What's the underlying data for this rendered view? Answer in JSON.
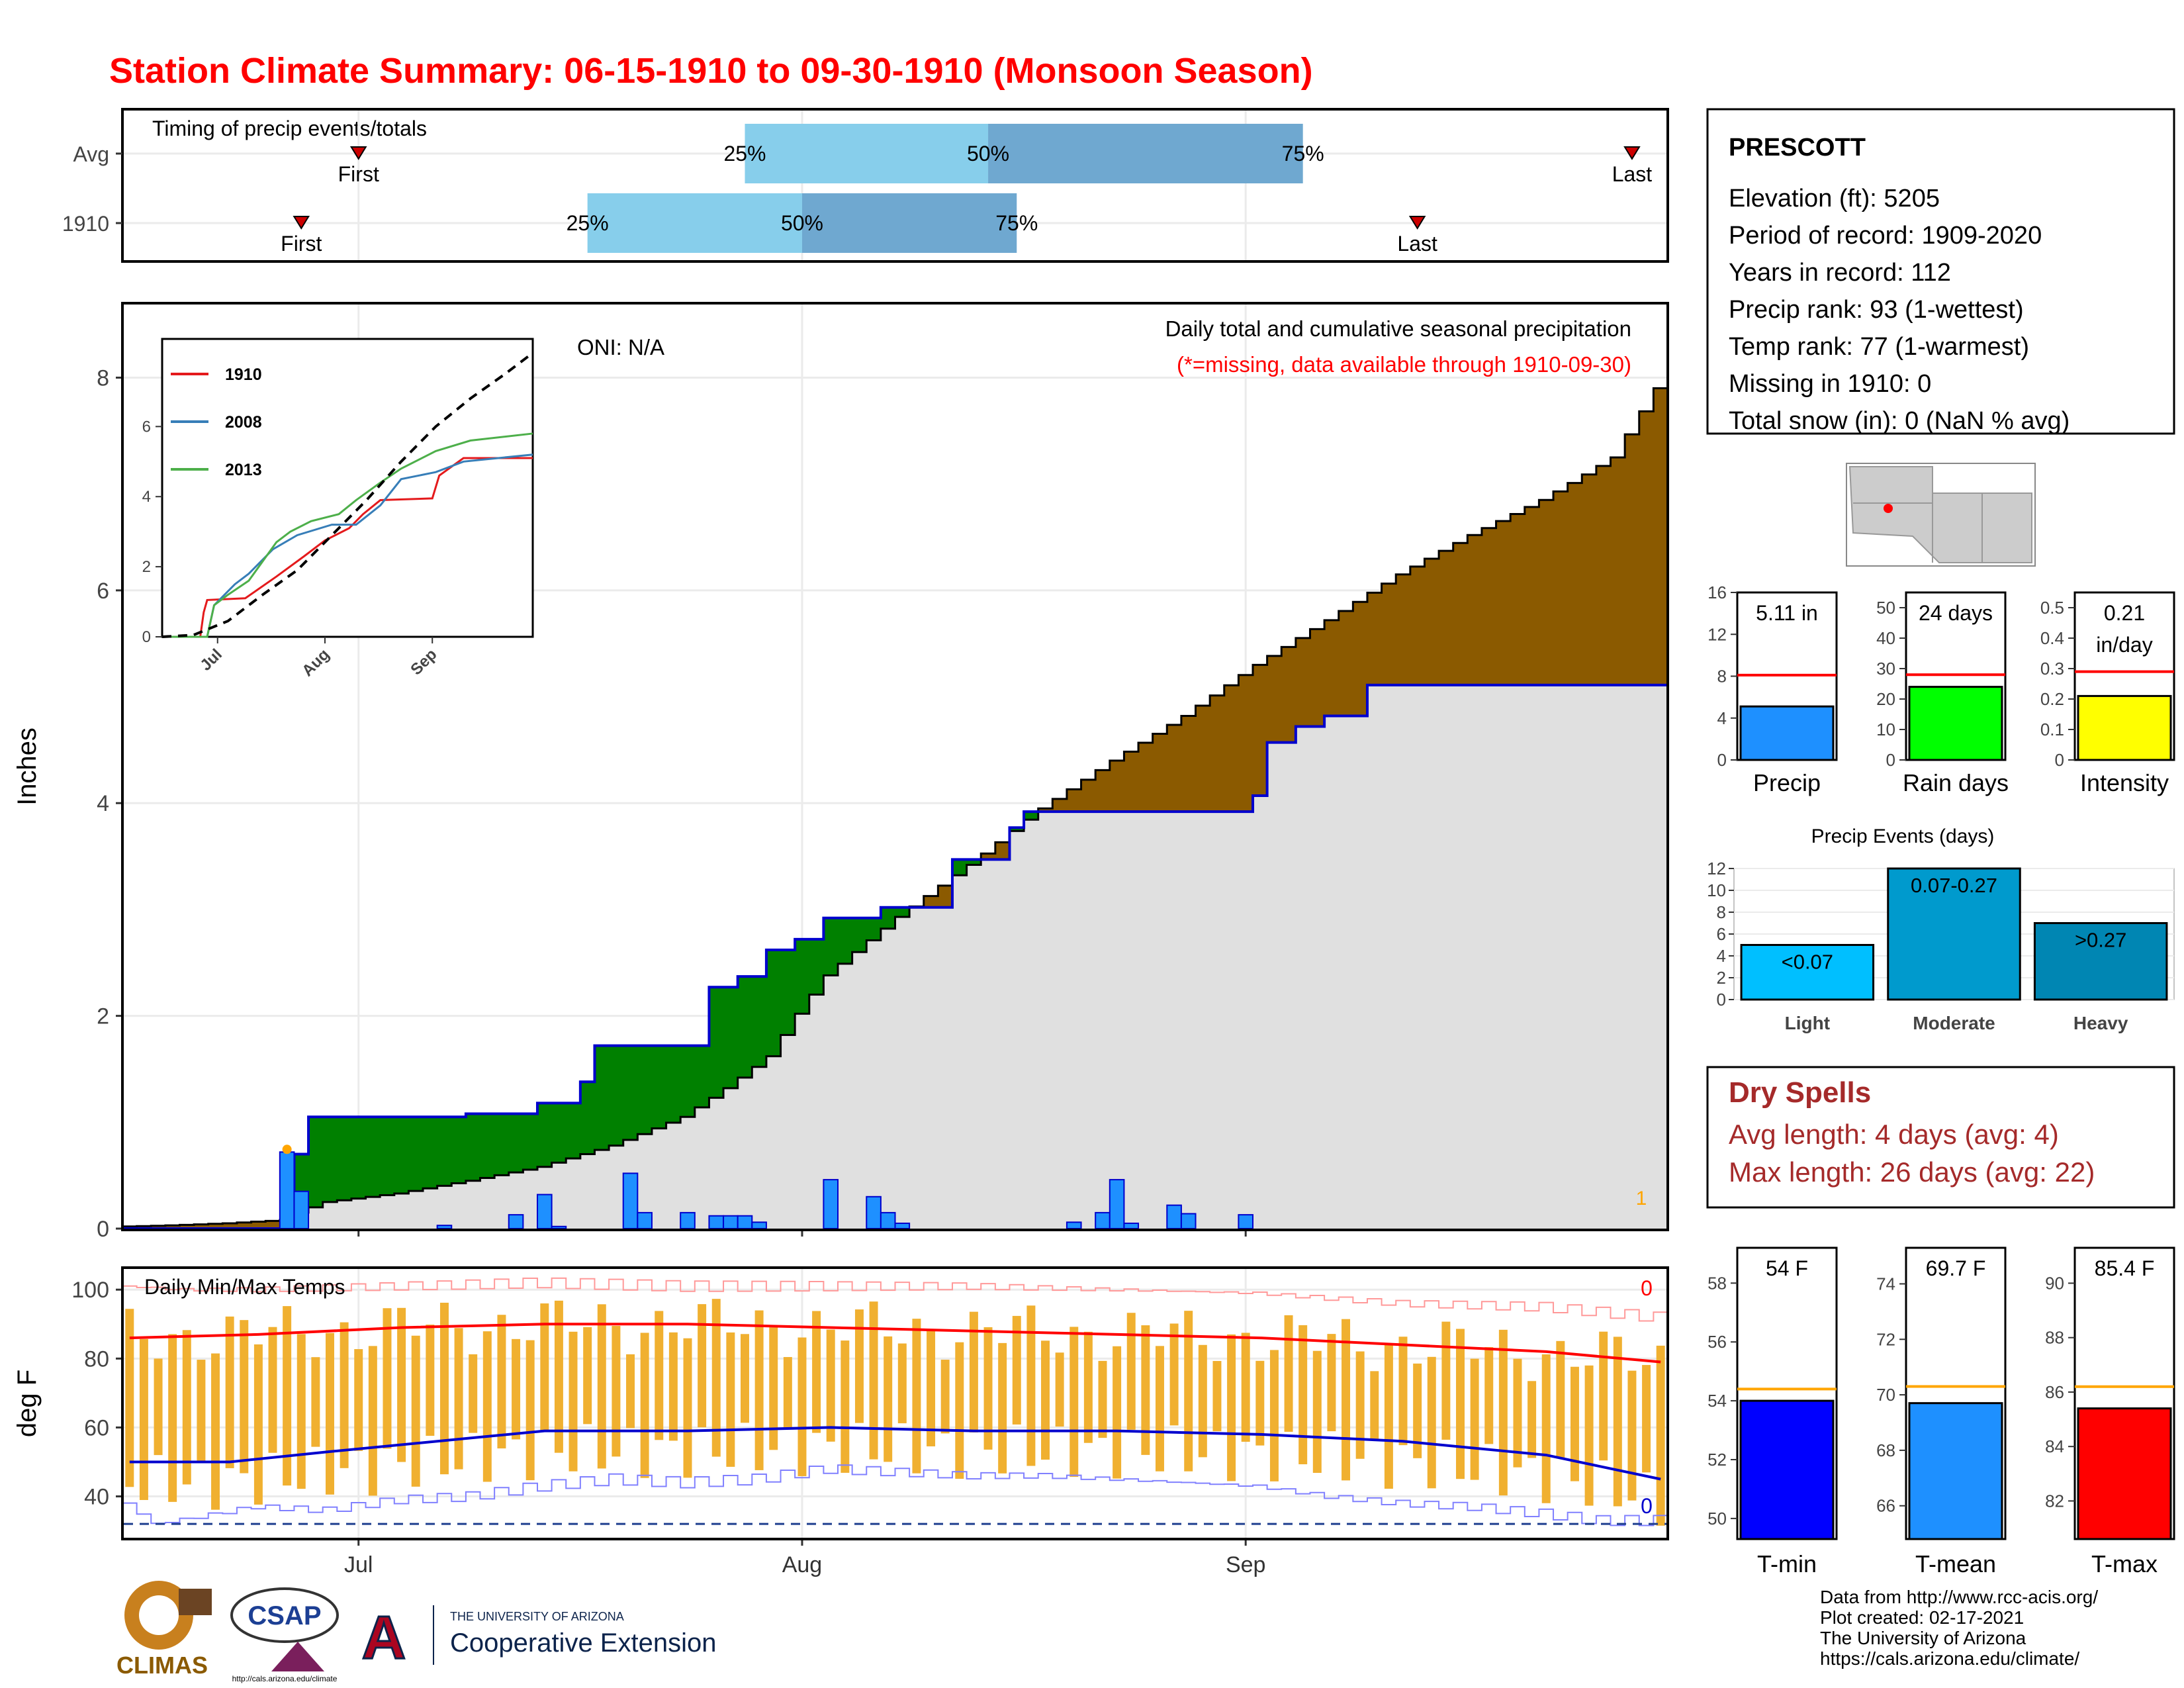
{
  "title": "Station Climate Summary: 06-15-1910 to 09-30-1910 (Monsoon Season)",
  "colors": {
    "title": "#ff0000",
    "dry_spells": "#a52a2a",
    "cumulative_avg": "#8b5a00",
    "surplus": "#008000",
    "observed_fill": "#e0e0e0",
    "daily_bar": "#1e90ff"
  },
  "month_labels": [
    "Jul",
    "Aug",
    "Sep"
  ],
  "chart_data": [
    {
      "id": "timing",
      "type": "bar",
      "title": "Timing of precip events/totals",
      "rows": [
        {
          "label": "Avg",
          "first_day": 17,
          "q25_day": 44,
          "q50_day": 61,
          "q75_day": 83,
          "last_day": 106
        },
        {
          "label": "1910",
          "first_day": 13,
          "q25_day": 33,
          "q50_day": 48,
          "q75_day": 63,
          "last_day": 91
        }
      ],
      "marker_labels": {
        "first": "First",
        "last": "Last"
      },
      "quartile_labels": [
        "25%",
        "50%",
        "75%"
      ],
      "xlim": [
        1,
        108
      ]
    },
    {
      "id": "precip",
      "type": "area",
      "title": "Daily total and cumulative seasonal precipitation",
      "subtitle": "(*=missing, data available through 1910-09-30)",
      "oni": "ONI: N/A",
      "ylabel": "Inches",
      "ylim": [
        0,
        8.7
      ],
      "yticks": [
        0,
        2,
        4,
        6,
        8
      ],
      "corner_value": "1",
      "cumulative_avg": [
        [
          1,
          0.02
        ],
        [
          4,
          0.03
        ],
        [
          8,
          0.05
        ],
        [
          12,
          0.08
        ],
        [
          13,
          0.15
        ],
        [
          15,
          0.25
        ],
        [
          20,
          0.33
        ],
        [
          25,
          0.45
        ],
        [
          30,
          0.58
        ],
        [
          35,
          0.78
        ],
        [
          40,
          1.05
        ],
        [
          43,
          1.32
        ],
        [
          46,
          1.62
        ],
        [
          48,
          2.02
        ],
        [
          50,
          2.38
        ],
        [
          55,
          2.93
        ],
        [
          60,
          3.42
        ],
        [
          65,
          3.95
        ],
        [
          70,
          4.4
        ],
        [
          75,
          4.82
        ],
        [
          80,
          5.3
        ],
        [
          85,
          5.72
        ],
        [
          90,
          6.15
        ],
        [
          95,
          6.52
        ],
        [
          100,
          6.85
        ],
        [
          105,
          7.25
        ],
        [
          108,
          7.9
        ]
      ],
      "cumulative_obs": [
        [
          1,
          0
        ],
        [
          12,
          0
        ],
        [
          13,
          0.7
        ],
        [
          14,
          1.05
        ],
        [
          25,
          1.08
        ],
        [
          30,
          1.18
        ],
        [
          33,
          1.38
        ],
        [
          34,
          1.72
        ],
        [
          40,
          1.72
        ],
        [
          41,
          1.72
        ],
        [
          42,
          2.27
        ],
        [
          44,
          2.37
        ],
        [
          46,
          2.62
        ],
        [
          48,
          2.72
        ],
        [
          50,
          2.92
        ],
        [
          52,
          2.92
        ],
        [
          53,
          2.92
        ],
        [
          54,
          3.02
        ],
        [
          58,
          3.02
        ],
        [
          59,
          3.47
        ],
        [
          61,
          3.47
        ],
        [
          63,
          3.77
        ],
        [
          64,
          3.92
        ],
        [
          70,
          3.92
        ],
        [
          79,
          3.92
        ],
        [
          80,
          4.07
        ],
        [
          81,
          4.57
        ],
        [
          83,
          4.72
        ],
        [
          85,
          4.82
        ],
        [
          88,
          5.11
        ],
        [
          108,
          5.11
        ]
      ],
      "daily": [
        [
          12,
          0.72
        ],
        [
          13,
          0.35
        ],
        [
          23,
          0.03
        ],
        [
          28,
          0.13
        ],
        [
          30,
          0.32
        ],
        [
          31,
          0.02
        ],
        [
          36,
          0.52
        ],
        [
          37,
          0.15
        ],
        [
          40,
          0.15
        ],
        [
          42,
          0.12
        ],
        [
          43,
          0.12
        ],
        [
          44,
          0.12
        ],
        [
          45,
          0.06
        ],
        [
          50,
          0.46
        ],
        [
          53,
          0.3
        ],
        [
          54,
          0.15
        ],
        [
          55,
          0.05
        ],
        [
          67,
          0.06
        ],
        [
          69,
          0.15
        ],
        [
          70,
          0.46
        ],
        [
          71,
          0.05
        ],
        [
          74,
          0.22
        ],
        [
          75,
          0.14
        ],
        [
          79,
          0.13
        ]
      ],
      "inset": {
        "ylim": [
          0,
          8.5
        ],
        "yticks": [
          0,
          2,
          4,
          6
        ],
        "series": [
          {
            "name": "1910",
            "color": "#e41a1c",
            "points": [
              [
                1,
                0
              ],
              [
                12,
                0
              ],
              [
                13,
                0.7
              ],
              [
                14,
                1.05
              ],
              [
                25,
                1.1
              ],
              [
                34,
                1.72
              ],
              [
                42,
                2.3
              ],
              [
                48,
                2.75
              ],
              [
                55,
                3.1
              ],
              [
                59,
                3.5
              ],
              [
                64,
                3.9
              ],
              [
                79,
                3.95
              ],
              [
                81,
                4.6
              ],
              [
                88,
                5.1
              ],
              [
                108,
                5.1
              ]
            ]
          },
          {
            "name": "2008",
            "color": "#377eb8",
            "points": [
              [
                1,
                0
              ],
              [
                14,
                0
              ],
              [
                16,
                0.9
              ],
              [
                22,
                1.5
              ],
              [
                26,
                1.8
              ],
              [
                33,
                2.5
              ],
              [
                40,
                2.9
              ],
              [
                50,
                3.2
              ],
              [
                57,
                3.2
              ],
              [
                64,
                3.75
              ],
              [
                70,
                4.5
              ],
              [
                80,
                4.7
              ],
              [
                88,
                5.0
              ],
              [
                108,
                5.2
              ]
            ]
          },
          {
            "name": "2013",
            "color": "#4daf4a",
            "points": [
              [
                1,
                0
              ],
              [
                14,
                0
              ],
              [
                16,
                0.9
              ],
              [
                20,
                1.2
              ],
              [
                26,
                1.6
              ],
              [
                34,
                2.7
              ],
              [
                38,
                3.0
              ],
              [
                44,
                3.3
              ],
              [
                52,
                3.5
              ],
              [
                57,
                3.9
              ],
              [
                64,
                4.4
              ],
              [
                70,
                4.8
              ],
              [
                80,
                5.3
              ],
              [
                90,
                5.6
              ],
              [
                108,
                5.8
              ]
            ]
          },
          {
            "name": "",
            "color": "#000000",
            "dashed": true,
            "points": [
              [
                1,
                0
              ],
              [
                10,
                0.05
              ],
              [
                20,
                0.45
              ],
              [
                30,
                1.2
              ],
              [
                40,
                1.9
              ],
              [
                50,
                2.9
              ],
              [
                60,
                3.9
              ],
              [
                70,
                5.0
              ],
              [
                80,
                6.0
              ],
              [
                90,
                6.8
              ],
              [
                100,
                7.5
              ],
              [
                108,
                8.1
              ]
            ]
          }
        ]
      }
    },
    {
      "id": "temps",
      "type": "line",
      "title": "Daily Min/Max Temps",
      "ylabel": "deg F",
      "ylim": [
        28,
        106
      ],
      "yticks": [
        40,
        60,
        80,
        100
      ],
      "count_top": "0",
      "count_bottom": "0",
      "freezing": 32,
      "tmax_avg": [
        [
          1,
          86
        ],
        [
          10,
          87
        ],
        [
          20,
          89
        ],
        [
          30,
          90
        ],
        [
          40,
          90
        ],
        [
          50,
          89
        ],
        [
          60,
          88
        ],
        [
          70,
          87
        ],
        [
          80,
          86
        ],
        [
          90,
          84
        ],
        [
          100,
          82
        ],
        [
          108,
          79
        ]
      ],
      "tmin_avg": [
        [
          1,
          50
        ],
        [
          8,
          50
        ],
        [
          15,
          53
        ],
        [
          25,
          57
        ],
        [
          30,
          59
        ],
        [
          35,
          59
        ],
        [
          40,
          59
        ],
        [
          50,
          60
        ],
        [
          60,
          59
        ],
        [
          70,
          59
        ],
        [
          80,
          58
        ],
        [
          90,
          56
        ],
        [
          100,
          52
        ],
        [
          108,
          45
        ]
      ],
      "tmax_rec": [
        [
          1,
          101
        ],
        [
          5,
          100
        ],
        [
          10,
          100
        ],
        [
          20,
          101
        ],
        [
          30,
          102
        ],
        [
          40,
          101
        ],
        [
          50,
          101
        ],
        [
          60,
          101
        ],
        [
          70,
          100
        ],
        [
          80,
          99
        ],
        [
          90,
          96
        ],
        [
          100,
          95
        ],
        [
          108,
          92
        ]
      ],
      "tmin_rec": [
        [
          1,
          38
        ],
        [
          3,
          32
        ],
        [
          6,
          34
        ],
        [
          10,
          37
        ],
        [
          15,
          36
        ],
        [
          20,
          39
        ],
        [
          25,
          40
        ],
        [
          30,
          43
        ],
        [
          35,
          45
        ],
        [
          40,
          44
        ],
        [
          45,
          45
        ],
        [
          50,
          48
        ],
        [
          55,
          47
        ],
        [
          60,
          46
        ],
        [
          65,
          46
        ],
        [
          70,
          45
        ],
        [
          75,
          44
        ],
        [
          80,
          43
        ],
        [
          85,
          40
        ],
        [
          90,
          38
        ],
        [
          95,
          37
        ],
        [
          100,
          35
        ],
        [
          104,
          33
        ],
        [
          108,
          33
        ]
      ]
    },
    {
      "id": "season-precip",
      "type": "bar",
      "bars": [
        {
          "name": "Precip",
          "label": "5.11 in",
          "value": 5.11,
          "avg": 8.1,
          "ylim": [
            0,
            16
          ],
          "yticks": [
            0,
            4,
            8,
            12,
            16
          ],
          "color": "#1e90ff"
        },
        {
          "name": "Rain days",
          "label": "24 days",
          "value": 24,
          "avg": 28,
          "ylim": [
            0,
            55
          ],
          "yticks": [
            0,
            10,
            20,
            30,
            40,
            50
          ],
          "color": "#00ff00"
        },
        {
          "name": "Intensity",
          "label": "0.21 in/day",
          "value": 0.21,
          "avg": 0.29,
          "ylim": [
            0,
            0.55
          ],
          "yticks": [
            0.0,
            0.1,
            0.2,
            0.3,
            0.4,
            0.5
          ],
          "color": "#ffff00"
        }
      ]
    },
    {
      "id": "precip-events",
      "type": "bar",
      "title": "Precip Events (days)",
      "categories": [
        "Light",
        "Moderate",
        "Heavy"
      ],
      "values": [
        5,
        12,
        7
      ],
      "bar_labels": [
        "<0.07",
        "0.07-0.27",
        ">0.27"
      ],
      "colors": [
        "#00bfff",
        "#009acd",
        "#0086b3"
      ],
      "ylim": [
        0,
        12
      ],
      "yticks": [
        0,
        2,
        4,
        6,
        8,
        10,
        12
      ]
    },
    {
      "id": "season-temps",
      "type": "bar",
      "bars": [
        {
          "name": "T-min",
          "label": "54 F",
          "value": 54,
          "avg": 54.4,
          "ylim": [
            49.3,
            59.2
          ],
          "yticks": [
            50,
            52,
            54,
            56,
            58
          ],
          "color": "#0000ff"
        },
        {
          "name": "T-mean",
          "label": "69.7 F",
          "value": 69.7,
          "avg": 70.3,
          "ylim": [
            64.8,
            75.3
          ],
          "yticks": [
            66,
            68,
            70,
            72,
            74
          ],
          "color": "#1e90ff"
        },
        {
          "name": "T-max",
          "label": "85.4 F",
          "value": 85.4,
          "avg": 86.2,
          "ylim": [
            80.6,
            91.3
          ],
          "yticks": [
            82,
            84,
            86,
            88,
            90
          ],
          "color": "#ff0000"
        }
      ]
    }
  ],
  "station": {
    "name": "PRESCOTT",
    "lines": [
      "Elevation (ft): 5205",
      "Period of record: 1909-2020",
      "Years in record: 112",
      "Precip rank: 93 (1-wettest)",
      "Temp rank: 77 (1-warmest)",
      "Missing in 1910: 0",
      "Total snow (in): 0 (NaN % avg)"
    ]
  },
  "dry_spells": {
    "title": "Dry Spells",
    "avg_line": "Avg length: 4 days (avg: 4)",
    "max_line": "Max length: 26 days (avg: 22)"
  },
  "footer": {
    "lines": [
      "Data from http://www.rcc-acis.org/",
      "Plot created: 02-17-2021",
      "The University of Arizona",
      "https://cals.arizona.edu/climate/"
    ]
  },
  "logos": {
    "climas": "CLIMAS",
    "csap": "CSAP",
    "csap_url": "http://cals.arizona.edu/climate",
    "ua_small": "THE UNIVERSITY OF ARIZONA",
    "coop": "Cooperative Extension"
  }
}
